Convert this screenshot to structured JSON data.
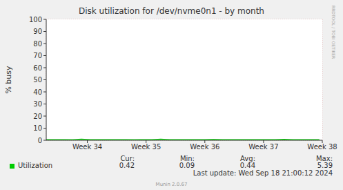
{
  "chart_data": {
    "type": "line",
    "title": "Disk utilization for /dev/nvme0n1 - by month",
    "y_label": "% busy",
    "x": [
      33.3,
      33.45,
      33.6,
      33.75,
      33.9,
      34.05,
      34.2,
      34.35,
      34.5,
      34.65,
      34.8,
      34.95,
      35.1,
      35.25,
      35.4,
      35.55,
      35.7,
      35.85,
      36.0,
      36.15,
      36.3,
      36.45,
      36.6,
      36.75,
      36.9,
      37.05,
      37.2,
      37.35,
      37.5,
      37.65,
      37.8,
      37.95
    ],
    "series": [
      {
        "name": "Utilization",
        "color": "#00cc00",
        "values": [
          0.4,
          0.45,
          0.42,
          0.5,
          0.9,
          0.45,
          0.4,
          0.43,
          0.41,
          0.44,
          0.5,
          0.4,
          0.42,
          0.8,
          0.45,
          0.41,
          0.43,
          0.4,
          0.42,
          0.6,
          0.44,
          0.41,
          0.45,
          0.42,
          0.43,
          0.4,
          0.46,
          0.7,
          0.42,
          0.44,
          0.41,
          0.42
        ]
      }
    ],
    "xlim": [
      33.3,
      38.0
    ],
    "xticks": [
      {
        "value": 34,
        "label": "Week 34"
      },
      {
        "value": 35,
        "label": "Week 35"
      },
      {
        "value": 36,
        "label": "Week 36"
      },
      {
        "value": 37,
        "label": "Week 37"
      },
      {
        "value": 38,
        "label": "Week 38"
      }
    ],
    "ylim": [
      0,
      100
    ],
    "yticks": [
      0,
      10,
      20,
      30,
      40,
      50,
      60,
      70,
      80,
      90,
      100
    ],
    "grid": true,
    "legend_table": {
      "columns": [
        "Cur:",
        "Min:",
        "Avg:",
        "Max:"
      ],
      "rows": [
        {
          "name": "Utilization",
          "values": [
            0.42,
            0.09,
            0.44,
            5.39
          ]
        }
      ]
    },
    "last_update": "Last update: Wed Sep 18 21:00:12 2024",
    "footer": "Munin 2.0.67",
    "side_text": "RRDTOOL / TOBI OETIKER"
  }
}
